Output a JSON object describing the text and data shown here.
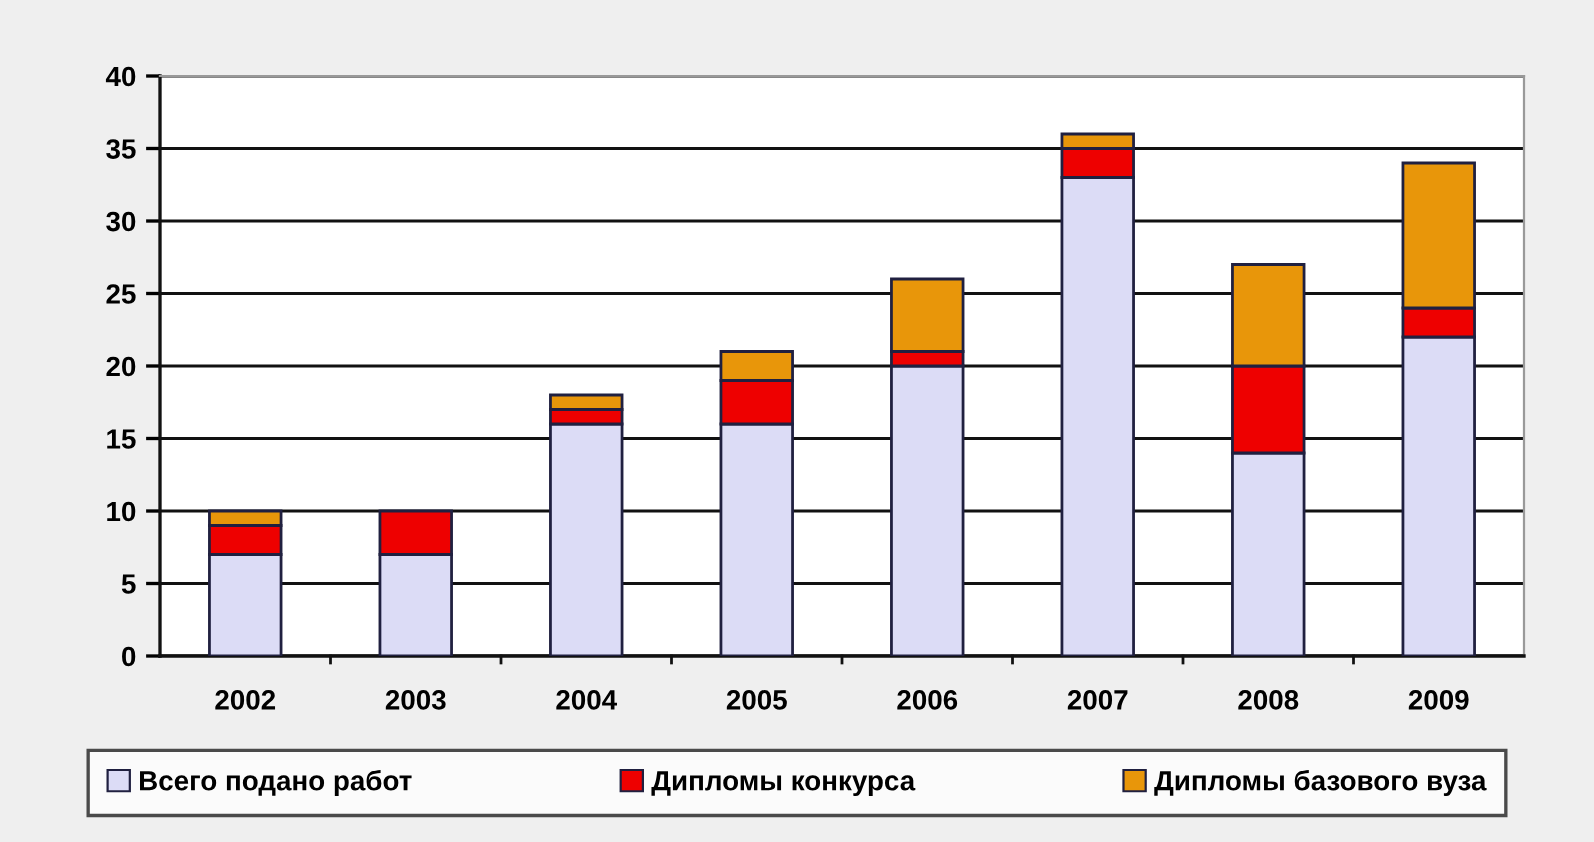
{
  "chart_data": {
    "type": "bar",
    "stacked": true,
    "categories": [
      "2002",
      "2003",
      "2004",
      "2005",
      "2006",
      "2007",
      "2008",
      "2009"
    ],
    "series": [
      {
        "name": "Всего подано работ",
        "color": "#dcdcf6",
        "values": [
          7,
          7,
          16,
          16,
          20,
          33,
          14,
          22
        ]
      },
      {
        "name": "Дипломы конкурса",
        "color": "#ee0000",
        "values": [
          2,
          3,
          1,
          3,
          1,
          2,
          6,
          2
        ]
      },
      {
        "name": "Дипломы базового вуза",
        "color": "#e8960a",
        "values": [
          1,
          null,
          1,
          2,
          5,
          1,
          7,
          10
        ]
      }
    ],
    "ylim": [
      0,
      40
    ],
    "yticks": [
      0,
      5,
      10,
      15,
      20,
      25,
      30,
      35,
      40
    ],
    "grid": "y",
    "legend": "bottom"
  }
}
